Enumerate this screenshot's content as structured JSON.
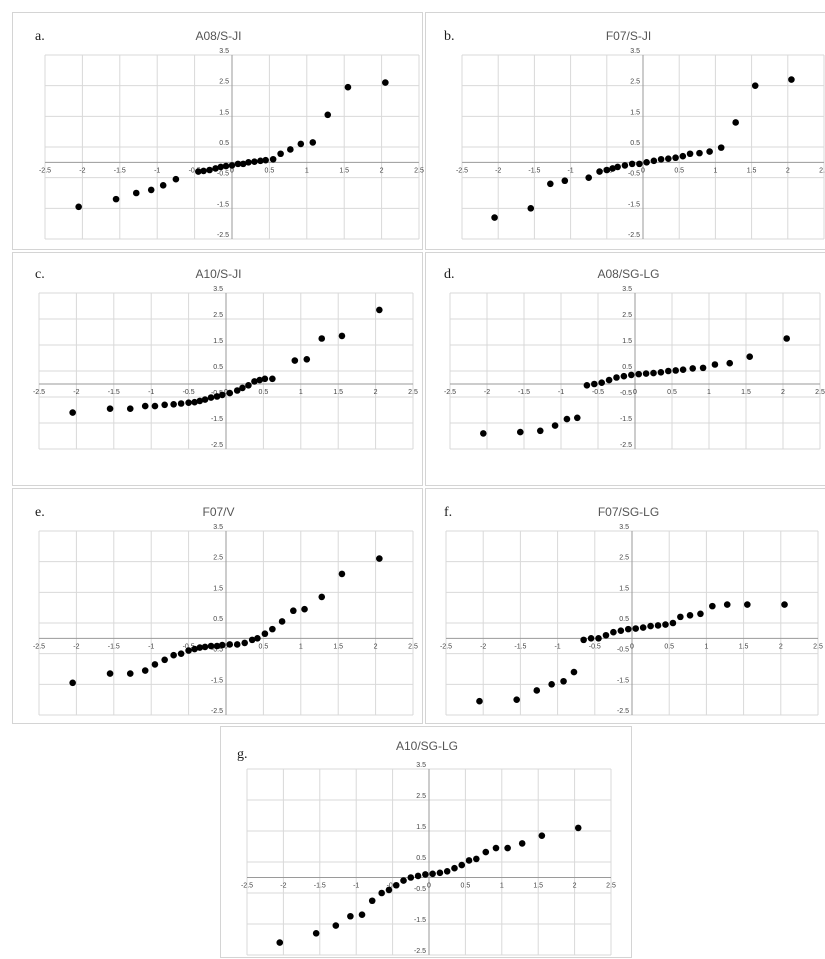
{
  "chart_data": [
    {
      "type": "scatter",
      "letter": "a.",
      "title": "A08/S-JI",
      "xlim": [
        -2.5,
        2.5
      ],
      "ylim": [
        -2.5,
        3.5
      ],
      "x_ticks": [
        "-2.5",
        "-2",
        "-1.5",
        "-1",
        "-0.5",
        "0",
        "0.5",
        "1",
        "1.5",
        "2",
        "2.5"
      ],
      "y_ticks": [
        "3.5",
        "2.5",
        "1.5",
        "0.5",
        "-0.5",
        "-1.5",
        "-2.5"
      ],
      "grid": true,
      "points": [
        [
          -2.05,
          -1.45
        ],
        [
          -1.55,
          -1.2
        ],
        [
          -1.28,
          -1.0
        ],
        [
          -1.08,
          -0.9
        ],
        [
          -0.92,
          -0.75
        ],
        [
          -0.75,
          -0.55
        ],
        [
          -0.45,
          -0.3
        ],
        [
          -0.38,
          -0.28
        ],
        [
          -0.3,
          -0.25
        ],
        [
          -0.22,
          -0.2
        ],
        [
          -0.15,
          -0.15
        ],
        [
          -0.08,
          -0.12
        ],
        [
          0.0,
          -0.1
        ],
        [
          0.08,
          -0.05
        ],
        [
          0.15,
          -0.05
        ],
        [
          0.22,
          0.0
        ],
        [
          0.3,
          0.02
        ],
        [
          0.38,
          0.05
        ],
        [
          0.45,
          0.07
        ],
        [
          0.55,
          0.1
        ],
        [
          0.65,
          0.28
        ],
        [
          0.78,
          0.42
        ],
        [
          0.92,
          0.6
        ],
        [
          1.08,
          0.65
        ],
        [
          1.28,
          1.55
        ],
        [
          1.55,
          2.45
        ],
        [
          2.05,
          2.6
        ]
      ]
    },
    {
      "type": "scatter",
      "letter": "b.",
      "title": "F07/S-JI",
      "xlim": [
        -2.5,
        2.5
      ],
      "ylim": [
        -2.5,
        3.5
      ],
      "x_ticks": [
        "-2.5",
        "-2",
        "-1.5",
        "-1",
        "-0.5",
        "0",
        "0.5",
        "1",
        "1.5",
        "2",
        "2.5"
      ],
      "y_ticks": [
        "3.5",
        "2.5",
        "1.5",
        "0.5",
        "-0.5",
        "-1.5",
        "-2.5"
      ],
      "grid": true,
      "points": [
        [
          -2.05,
          -1.8
        ],
        [
          -1.55,
          -1.5
        ],
        [
          -1.28,
          -0.7
        ],
        [
          -1.08,
          -0.6
        ],
        [
          -0.75,
          -0.5
        ],
        [
          -0.6,
          -0.3
        ],
        [
          -0.5,
          -0.25
        ],
        [
          -0.42,
          -0.2
        ],
        [
          -0.35,
          -0.15
        ],
        [
          -0.25,
          -0.1
        ],
        [
          -0.15,
          -0.05
        ],
        [
          -0.05,
          -0.05
        ],
        [
          0.05,
          0.0
        ],
        [
          0.15,
          0.05
        ],
        [
          0.25,
          0.1
        ],
        [
          0.35,
          0.12
        ],
        [
          0.45,
          0.15
        ],
        [
          0.55,
          0.2
        ],
        [
          0.65,
          0.28
        ],
        [
          0.78,
          0.3
        ],
        [
          0.92,
          0.35
        ],
        [
          1.08,
          0.48
        ],
        [
          1.28,
          1.3
        ],
        [
          1.55,
          2.5
        ],
        [
          2.05,
          2.7
        ]
      ]
    },
    {
      "type": "scatter",
      "letter": "c.",
      "title": "A10/S-JI",
      "xlim": [
        -2.5,
        2.5
      ],
      "ylim": [
        -2.5,
        3.5
      ],
      "x_ticks": [
        "-2.5",
        "-2",
        "-1.5",
        "-1",
        "-0.5",
        "0",
        "0.5",
        "1",
        "1.5",
        "2",
        "2.5"
      ],
      "y_ticks": [
        "3.5",
        "2.5",
        "1.5",
        "0.5",
        "-0.5",
        "-1.5",
        "-2.5"
      ],
      "grid": true,
      "points": [
        [
          -2.05,
          -1.1
        ],
        [
          -1.55,
          -0.95
        ],
        [
          -1.28,
          -0.95
        ],
        [
          -1.08,
          -0.85
        ],
        [
          -0.95,
          -0.85
        ],
        [
          -0.82,
          -0.8
        ],
        [
          -0.7,
          -0.78
        ],
        [
          -0.6,
          -0.75
        ],
        [
          -0.5,
          -0.72
        ],
        [
          -0.42,
          -0.7
        ],
        [
          -0.35,
          -0.65
        ],
        [
          -0.28,
          -0.6
        ],
        [
          -0.2,
          -0.52
        ],
        [
          -0.12,
          -0.48
        ],
        [
          -0.05,
          -0.42
        ],
        [
          0.05,
          -0.35
        ],
        [
          0.15,
          -0.25
        ],
        [
          0.22,
          -0.15
        ],
        [
          0.3,
          -0.05
        ],
        [
          0.38,
          0.1
        ],
        [
          0.45,
          0.15
        ],
        [
          0.52,
          0.2
        ],
        [
          0.62,
          0.2
        ],
        [
          0.92,
          0.9
        ],
        [
          1.08,
          0.95
        ],
        [
          1.28,
          1.75
        ],
        [
          1.55,
          1.85
        ],
        [
          2.05,
          2.85
        ]
      ]
    },
    {
      "type": "scatter",
      "letter": "d.",
      "title": "A08/SG-LG",
      "xlim": [
        -2.5,
        2.5
      ],
      "ylim": [
        -2.5,
        3.5
      ],
      "x_ticks": [
        "-2.5",
        "-2",
        "-1.5",
        "-1",
        "-0.5",
        "0",
        "0.5",
        "1",
        "1.5",
        "2",
        "2.5"
      ],
      "y_ticks": [
        "3.5",
        "2.5",
        "1.5",
        "0.5",
        "-0.5",
        "-1.5",
        "-2.5"
      ],
      "grid": true,
      "points": [
        [
          -2.05,
          -1.9
        ],
        [
          -1.55,
          -1.85
        ],
        [
          -1.28,
          -1.8
        ],
        [
          -1.08,
          -1.6
        ],
        [
          -0.92,
          -1.35
        ],
        [
          -0.78,
          -1.3
        ],
        [
          -0.65,
          -0.05
        ],
        [
          -0.55,
          0.0
        ],
        [
          -0.45,
          0.05
        ],
        [
          -0.35,
          0.15
        ],
        [
          -0.25,
          0.25
        ],
        [
          -0.15,
          0.3
        ],
        [
          -0.05,
          0.35
        ],
        [
          0.05,
          0.38
        ],
        [
          0.15,
          0.4
        ],
        [
          0.25,
          0.42
        ],
        [
          0.35,
          0.45
        ],
        [
          0.45,
          0.5
        ],
        [
          0.55,
          0.52
        ],
        [
          0.65,
          0.55
        ],
        [
          0.78,
          0.6
        ],
        [
          0.92,
          0.62
        ],
        [
          1.08,
          0.75
        ],
        [
          1.28,
          0.8
        ],
        [
          1.55,
          1.05
        ],
        [
          2.05,
          1.75
        ]
      ]
    },
    {
      "type": "scatter",
      "letter": "e.",
      "title": "F07/V",
      "xlim": [
        -2.5,
        2.5
      ],
      "ylim": [
        -2.5,
        3.5
      ],
      "x_ticks": [
        "-2.5",
        "-2",
        "-1.5",
        "-1",
        "-0.5",
        "0",
        "0.5",
        "1",
        "1.5",
        "2",
        "2.5"
      ],
      "y_ticks": [
        "3.5",
        "2.5",
        "1.5",
        "0.5",
        "-0.5",
        "-1.5",
        "-2.5"
      ],
      "grid": true,
      "points": [
        [
          -2.05,
          -1.45
        ],
        [
          -1.55,
          -1.15
        ],
        [
          -1.28,
          -1.15
        ],
        [
          -1.08,
          -1.05
        ],
        [
          -0.95,
          -0.85
        ],
        [
          -0.82,
          -0.7
        ],
        [
          -0.7,
          -0.55
        ],
        [
          -0.6,
          -0.5
        ],
        [
          -0.5,
          -0.4
        ],
        [
          -0.42,
          -0.35
        ],
        [
          -0.35,
          -0.3
        ],
        [
          -0.28,
          -0.28
        ],
        [
          -0.2,
          -0.25
        ],
        [
          -0.12,
          -0.25
        ],
        [
          -0.05,
          -0.22
        ],
        [
          0.05,
          -0.2
        ],
        [
          0.15,
          -0.2
        ],
        [
          0.25,
          -0.15
        ],
        [
          0.35,
          -0.05
        ],
        [
          0.42,
          0.0
        ],
        [
          0.52,
          0.15
        ],
        [
          0.62,
          0.3
        ],
        [
          0.75,
          0.55
        ],
        [
          0.9,
          0.9
        ],
        [
          1.05,
          0.95
        ],
        [
          1.28,
          1.35
        ],
        [
          1.55,
          2.1
        ],
        [
          2.05,
          2.6
        ]
      ]
    },
    {
      "type": "scatter",
      "letter": "f.",
      "title": "F07/SG-LG",
      "xlim": [
        -2.5,
        2.5
      ],
      "ylim": [
        -2.5,
        3.5
      ],
      "x_ticks": [
        "-2.5",
        "-2",
        "-1.5",
        "-1",
        "-0.5",
        "0",
        "0.5",
        "1",
        "1.5",
        "2",
        "2.5"
      ],
      "y_ticks": [
        "3.5",
        "2.5",
        "1.5",
        "0.5",
        "-0.5",
        "-1.5",
        "-2.5"
      ],
      "grid": true,
      "points": [
        [
          -2.05,
          -2.05
        ],
        [
          -1.55,
          -2.0
        ],
        [
          -1.28,
          -1.7
        ],
        [
          -1.08,
          -1.5
        ],
        [
          -0.92,
          -1.4
        ],
        [
          -0.78,
          -1.1
        ],
        [
          -0.65,
          -0.05
        ],
        [
          -0.55,
          0.0
        ],
        [
          -0.45,
          0.0
        ],
        [
          -0.35,
          0.1
        ],
        [
          -0.25,
          0.2
        ],
        [
          -0.15,
          0.25
        ],
        [
          -0.05,
          0.3
        ],
        [
          0.05,
          0.32
        ],
        [
          0.15,
          0.35
        ],
        [
          0.25,
          0.4
        ],
        [
          0.35,
          0.42
        ],
        [
          0.45,
          0.45
        ],
        [
          0.55,
          0.5
        ],
        [
          0.65,
          0.7
        ],
        [
          0.78,
          0.75
        ],
        [
          0.92,
          0.8
        ],
        [
          1.08,
          1.05
        ],
        [
          1.28,
          1.1
        ],
        [
          1.55,
          1.1
        ],
        [
          2.05,
          1.1
        ]
      ]
    },
    {
      "type": "scatter",
      "letter": "g.",
      "title": "A10/SG-LG",
      "xlim": [
        -2.5,
        2.5
      ],
      "ylim": [
        -2.5,
        3.5
      ],
      "x_ticks": [
        "-2.5",
        "-2",
        "-1.5",
        "-1",
        "-0.5",
        "0",
        "0.5",
        "1",
        "1.5",
        "2",
        "2.5"
      ],
      "y_ticks": [
        "3.5",
        "2.5",
        "1.5",
        "0.5",
        "-0.5",
        "-1.5",
        "-2.5"
      ],
      "grid": true,
      "points": [
        [
          -2.05,
          -2.1
        ],
        [
          -1.55,
          -1.8
        ],
        [
          -1.28,
          -1.55
        ],
        [
          -1.08,
          -1.25
        ],
        [
          -0.92,
          -1.2
        ],
        [
          -0.78,
          -0.75
        ],
        [
          -0.65,
          -0.5
        ],
        [
          -0.55,
          -0.4
        ],
        [
          -0.45,
          -0.25
        ],
        [
          -0.35,
          -0.1
        ],
        [
          -0.25,
          0.0
        ],
        [
          -0.15,
          0.05
        ],
        [
          -0.05,
          0.1
        ],
        [
          0.05,
          0.12
        ],
        [
          0.15,
          0.15
        ],
        [
          0.25,
          0.2
        ],
        [
          0.35,
          0.3
        ],
        [
          0.45,
          0.4
        ],
        [
          0.55,
          0.55
        ],
        [
          0.65,
          0.6
        ],
        [
          0.78,
          0.82
        ],
        [
          0.92,
          0.95
        ],
        [
          1.08,
          0.95
        ],
        [
          1.28,
          1.1
        ],
        [
          1.55,
          1.35
        ],
        [
          2.05,
          1.6
        ]
      ]
    }
  ]
}
